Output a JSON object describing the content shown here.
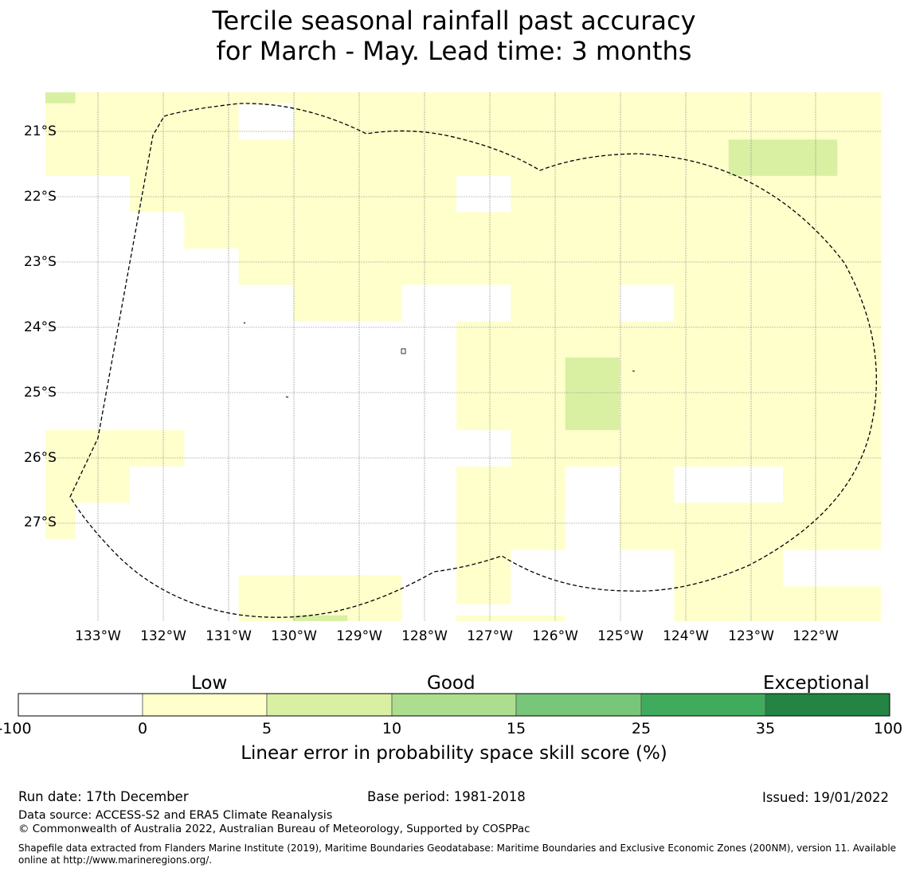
{
  "title": {
    "line1": "Tercile seasonal rainfall past accuracy",
    "line2": "for March - May. Lead time: 3 months"
  },
  "map": {
    "lat_labels": [
      "21°S",
      "22°S",
      "23°S",
      "24°S",
      "25°S",
      "26°S",
      "27°S"
    ],
    "lon_labels": [
      "133°W",
      "132°W",
      "131°W",
      "130°W",
      "129°W",
      "128°W",
      "127°W",
      "126°W",
      "125°W",
      "124°W",
      "123°W",
      "122°W"
    ],
    "boundary_style": "dashed black line (EEZ boundary)"
  },
  "colorbar": {
    "categories": [
      "Low",
      "Good",
      "Exceptional"
    ],
    "ticks": [
      "-100",
      "0",
      "5",
      "10",
      "15",
      "25",
      "35",
      "100"
    ],
    "colors": [
      "#ffffff",
      "#ffffcc",
      "#d9f0a3",
      "#addd8e",
      "#78c679",
      "#41ab5d",
      "#238443"
    ],
    "title": "Linear error in probability space skill score (%)"
  },
  "footer": {
    "run_date": "Run date: 17th December",
    "base_period": "Base period: 1981-2018",
    "issued": "Issued: 19/01/2022",
    "data_source": "Data source: ACCESS-S2 and ERA5 Climate Reanalysis",
    "copyright": "© Commonwealth of Australia 2022, Australian Bureau of Meteorology, Supported by COSPPac",
    "shapefile": "Shapefile data extracted from Flanders Marine Institute (2019), Maritime Boundaries Geodatabase: Maritime Boundaries and Exclusive Economic Zones (200NM), version 11. Available online at http://www.marineregions.org/."
  }
}
